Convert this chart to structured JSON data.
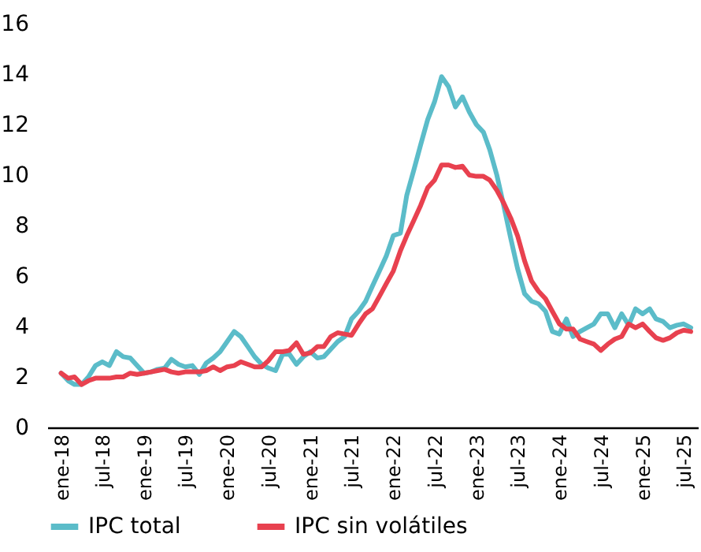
{
  "chart_data": {
    "type": "line",
    "x": [
      "2018-01",
      "2018-02",
      "2018-03",
      "2018-04",
      "2018-05",
      "2018-06",
      "2018-07",
      "2018-08",
      "2018-09",
      "2018-10",
      "2018-11",
      "2018-12",
      "2019-01",
      "2019-02",
      "2019-03",
      "2019-04",
      "2019-05",
      "2019-06",
      "2019-07",
      "2019-08",
      "2019-09",
      "2019-10",
      "2019-11",
      "2019-12",
      "2020-01",
      "2020-02",
      "2020-03",
      "2020-04",
      "2020-05",
      "2020-06",
      "2020-07",
      "2020-08",
      "2020-09",
      "2020-10",
      "2020-11",
      "2020-12",
      "2021-01",
      "2021-02",
      "2021-03",
      "2021-04",
      "2021-05",
      "2021-06",
      "2021-07",
      "2021-08",
      "2021-09",
      "2021-10",
      "2021-11",
      "2021-12",
      "2022-01",
      "2022-02",
      "2022-03",
      "2022-04",
      "2022-05",
      "2022-06",
      "2022-07",
      "2022-08",
      "2022-09",
      "2022-10",
      "2022-11",
      "2022-12",
      "2023-01",
      "2023-02",
      "2023-03",
      "2023-04",
      "2023-05",
      "2023-06",
      "2023-07",
      "2023-08",
      "2023-09",
      "2023-10",
      "2023-11",
      "2023-12",
      "2024-01",
      "2024-02",
      "2024-03",
      "2024-04",
      "2024-05",
      "2024-06",
      "2024-07",
      "2024-08",
      "2024-09",
      "2024-10",
      "2024-11",
      "2024-12",
      "2025-01",
      "2025-02",
      "2025-03",
      "2025-04",
      "2025-05",
      "2025-06",
      "2025-07",
      "2025-08"
    ],
    "series": [
      {
        "name": "IPC total",
        "color": "#5bbcc9",
        "values": [
          2.15,
          1.85,
          1.7,
          1.7,
          2.0,
          2.45,
          2.6,
          2.45,
          3.0,
          2.8,
          2.75,
          2.45,
          2.15,
          2.2,
          2.3,
          2.35,
          2.7,
          2.5,
          2.4,
          2.45,
          2.1,
          2.55,
          2.75,
          3.0,
          3.4,
          3.8,
          3.6,
          3.2,
          2.8,
          2.5,
          2.35,
          2.25,
          2.9,
          2.9,
          2.5,
          2.8,
          3.0,
          2.75,
          2.8,
          3.1,
          3.4,
          3.6,
          4.3,
          4.6,
          5.0,
          5.6,
          6.2,
          6.8,
          7.6,
          7.7,
          9.2,
          10.2,
          11.2,
          12.2,
          12.9,
          13.9,
          13.5,
          12.7,
          13.1,
          12.5,
          12.0,
          11.7,
          11.0,
          10.0,
          8.8,
          7.5,
          6.3,
          5.3,
          5.0,
          4.9,
          4.6,
          3.8,
          3.7,
          4.3,
          3.6,
          3.8,
          3.95,
          4.1,
          4.5,
          4.5,
          3.95,
          4.5,
          4.05,
          4.7,
          4.5,
          4.7,
          4.3,
          4.2,
          3.95,
          4.05,
          4.1,
          3.95
        ]
      },
      {
        "name": "IPC sin volátiles",
        "color": "#e8414f",
        "values": [
          2.15,
          1.95,
          2.0,
          1.7,
          1.85,
          1.95,
          1.95,
          1.95,
          2.0,
          2.0,
          2.15,
          2.1,
          2.15,
          2.2,
          2.25,
          2.3,
          2.2,
          2.15,
          2.2,
          2.2,
          2.2,
          2.25,
          2.4,
          2.25,
          2.4,
          2.45,
          2.6,
          2.5,
          2.4,
          2.4,
          2.65,
          3.0,
          3.0,
          3.05,
          3.35,
          2.9,
          2.95,
          3.2,
          3.2,
          3.6,
          3.75,
          3.7,
          3.65,
          4.1,
          4.5,
          4.7,
          5.2,
          5.7,
          6.2,
          7.0,
          7.6,
          8.2,
          8.8,
          9.5,
          9.8,
          10.4,
          10.4,
          10.3,
          10.35,
          10.0,
          9.95,
          9.95,
          9.8,
          9.4,
          8.9,
          8.3,
          7.6,
          6.6,
          5.8,
          5.4,
          5.1,
          4.6,
          4.1,
          3.9,
          3.9,
          3.5,
          3.4,
          3.3,
          3.05,
          3.3,
          3.5,
          3.6,
          4.1,
          3.95,
          4.1,
          3.8,
          3.55,
          3.45,
          3.55,
          3.75,
          3.85,
          3.8
        ]
      }
    ],
    "xlim": [
      "2017-11",
      "2025-09"
    ],
    "xticks": [
      {
        "value": "2018-01",
        "label": "ene-18"
      },
      {
        "value": "2018-07",
        "label": "jul-18"
      },
      {
        "value": "2019-01",
        "label": "ene-19"
      },
      {
        "value": "2019-07",
        "label": "jul-19"
      },
      {
        "value": "2020-01",
        "label": "ene-20"
      },
      {
        "value": "2020-07",
        "label": "jul-20"
      },
      {
        "value": "2021-01",
        "label": "ene-21"
      },
      {
        "value": "2021-07",
        "label": "jul-21"
      },
      {
        "value": "2022-01",
        "label": "ene-22"
      },
      {
        "value": "2022-07",
        "label": "jul-22"
      },
      {
        "value": "2023-01",
        "label": "ene-23"
      },
      {
        "value": "2023-07",
        "label": "jul-23"
      },
      {
        "value": "2024-01",
        "label": "ene-24"
      },
      {
        "value": "2024-07",
        "label": "jul-24"
      },
      {
        "value": "2025-01",
        "label": "ene-25"
      },
      {
        "value": "2025-07",
        "label": "jul-25"
      }
    ],
    "ylim": [
      0,
      16
    ],
    "yticks": [
      0,
      2,
      4,
      6,
      8,
      10,
      12,
      14,
      16
    ],
    "legend": "bottom",
    "grid": false,
    "marker": "none",
    "line_style": "solid"
  }
}
